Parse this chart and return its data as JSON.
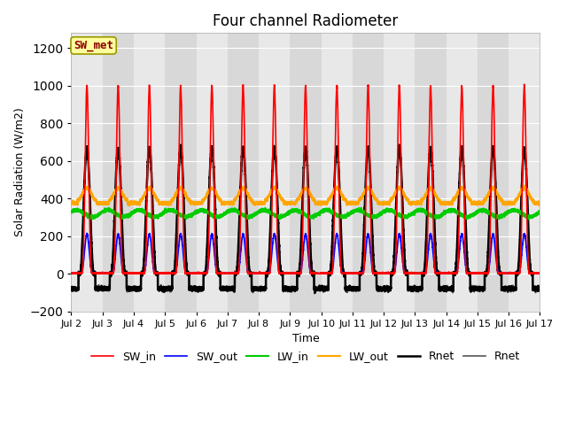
{
  "title": "Four channel Radiometer",
  "xlabel": "Time",
  "ylabel": "Solar Radiation (W/m2)",
  "ylim": [
    -200,
    1280
  ],
  "yticks": [
    -200,
    0,
    200,
    400,
    600,
    800,
    1000,
    1200
  ],
  "num_days": 15,
  "SW_in_peak": 1000,
  "SW_out_peak": 210,
  "LW_in_base": 320,
  "LW_in_amp": 18,
  "LW_out_base": 390,
  "LW_out_amp": 65,
  "Rnet_peak": 670,
  "Rnet_night": -80,
  "x_tick_labels": [
    "Jul 2",
    "Jul 3",
    "Jul 4",
    "Jul 5",
    "Jul 6",
    "Jul 7",
    "Jul 8",
    "Jul 9",
    "Jul 10",
    "Jul 11",
    "Jul 12",
    "Jul 13",
    "Jul 14",
    "Jul 15",
    "Jul 16",
    "Jul 17"
  ],
  "colors": {
    "SW_in": "#ff0000",
    "SW_out": "#0000ff",
    "LW_in": "#00cc00",
    "LW_out": "#ffa500",
    "Rnet": "#000000",
    "Rnet2": "#555555"
  },
  "linewidths": {
    "SW_in": 1.2,
    "SW_out": 1.2,
    "LW_in": 1.5,
    "LW_out": 1.5,
    "Rnet": 1.8,
    "Rnet2": 1.2
  },
  "annotation_text": "SW_met",
  "annotation_fontcolor": "#8B0000",
  "annotation_bgcolor": "#FFFFA0",
  "annotation_edgecolor": "#999900",
  "band_colors": [
    "#e8e8e8",
    "#d8d8d8"
  ],
  "plot_bgcolor": "#e8e8e8",
  "grid_color": "#ffffff",
  "title_fontsize": 12
}
